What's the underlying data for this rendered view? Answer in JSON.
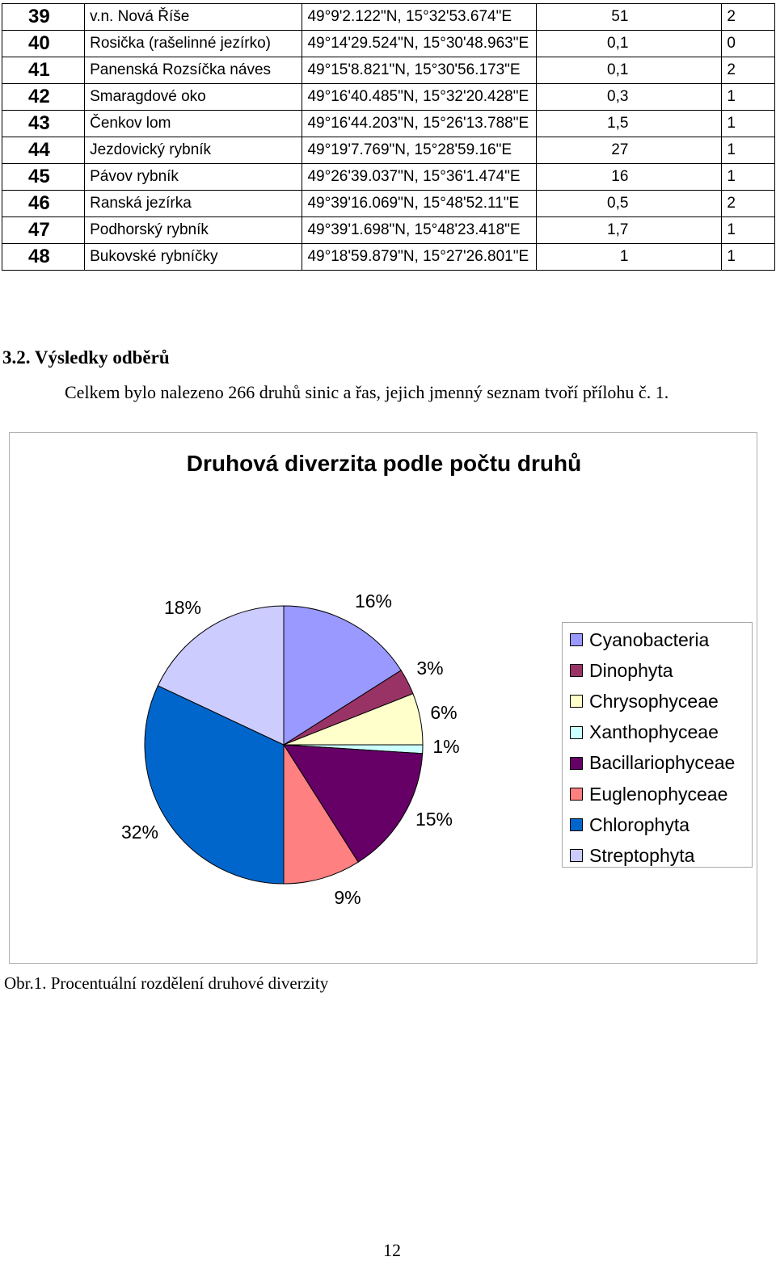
{
  "table": {
    "rows": [
      {
        "num": "39",
        "name": "v.n. Nová Říše",
        "gps": "49°9'2.122\"N, 15°32'53.674\"E",
        "v1": "51",
        "v2": "2"
      },
      {
        "num": "40",
        "name": "Rosička (rašelinné jezírko)",
        "gps": "49°14'29.524\"N, 15°30'48.963\"E",
        "v1": "0,1",
        "v2": "0"
      },
      {
        "num": "41",
        "name": "Panenská Rozsíčka náves",
        "gps": "49°15'8.821\"N, 15°30'56.173\"E",
        "v1": "0,1",
        "v2": "2"
      },
      {
        "num": "42",
        "name": "Smaragdové oko",
        "gps": "49°16'40.485\"N, 15°32'20.428\"E",
        "v1": "0,3",
        "v2": "1"
      },
      {
        "num": "43",
        "name": "Čenkov lom",
        "gps": "49°16'44.203\"N, 15°26'13.788\"E",
        "v1": "1,5",
        "v2": "1"
      },
      {
        "num": "44",
        "name": "Jezdovický rybník",
        "gps": "49°19'7.769\"N, 15°28'59.16\"E",
        "v1": "27",
        "v2": "1"
      },
      {
        "num": "45",
        "name": "Pávov rybník",
        "gps": "49°26'39.037\"N, 15°36'1.474\"E",
        "v1": "16",
        "v2": "1"
      },
      {
        "num": "46",
        "name": "Ranská jezírka",
        "gps": "49°39'16.069\"N, 15°48'52.11\"E",
        "v1": "0,5",
        "v2": "2"
      },
      {
        "num": "47",
        "name": "Podhorský rybník",
        "gps": "49°39'1.698\"N, 15°48'23.418\"E",
        "v1": "1,7",
        "v2": "1"
      },
      {
        "num": "48",
        "name": "Bukovské rybníčky",
        "gps": "49°18'59.879\"N, 15°27'26.801\"E",
        "v1": "1",
        "v2": "1"
      }
    ]
  },
  "section": {
    "heading": "3.2. Výsledky odběrů",
    "paragraph": "Celkem bylo nalezeno 266 druhů sinic a řas, jejich jmenný seznam tvoří přílohu č. 1."
  },
  "chart_data": {
    "type": "pie",
    "title": "Druhová diverzita podle počtu druhů",
    "legend_position": "right",
    "categories": [
      "Cyanobacteria",
      "Dinophyta",
      "Chrysophyceae",
      "Xanthophyceae",
      "Bacillariophyceae",
      "Euglenophyceae",
      "Chlorophyta",
      "Streptophyta"
    ],
    "values": [
      16,
      3,
      6,
      1,
      15,
      9,
      32,
      18
    ],
    "labels": [
      "16%",
      "3%",
      "6%",
      "1%",
      "15%",
      "9%",
      "32%",
      "18%"
    ],
    "colors": [
      "#9999ff",
      "#993366",
      "#ffffcc",
      "#ccffff",
      "#660066",
      "#ff8080",
      "#0066cc",
      "#ccccff"
    ]
  },
  "caption": "Obr.1. Procentuální rozdělení druhové diverzity",
  "page_number": "12"
}
